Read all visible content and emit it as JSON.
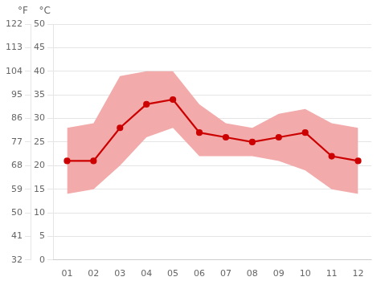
{
  "chart_data": {
    "type": "line",
    "categories": [
      "01",
      "02",
      "03",
      "04",
      "05",
      "06",
      "07",
      "08",
      "09",
      "10",
      "11",
      "12"
    ],
    "series": [
      {
        "type": "line",
        "color": "#cc0000",
        "marker": "circle",
        "values": [
          21,
          21,
          28,
          33,
          34,
          27,
          26,
          25,
          26,
          27,
          22,
          21
        ]
      },
      {
        "type": "band",
        "color": "#f2aaaa",
        "low": [
          14,
          15,
          20,
          26,
          28,
          22,
          22,
          22,
          21,
          19,
          15,
          14
        ],
        "high": [
          28,
          29,
          39,
          40,
          40,
          33,
          29,
          28,
          31,
          32,
          29,
          28
        ]
      }
    ],
    "ylabel": "°C",
    "ylim": [
      0,
      50
    ],
    "yticks": [
      0,
      5,
      10,
      15,
      20,
      25,
      30,
      35,
      40,
      45,
      50
    ],
    "y2label": "°F",
    "y2lim": [
      32,
      122
    ],
    "y2ticks": [
      32,
      41,
      50,
      59,
      68,
      77,
      86,
      95,
      104,
      113,
      122
    ],
    "grid": true
  }
}
